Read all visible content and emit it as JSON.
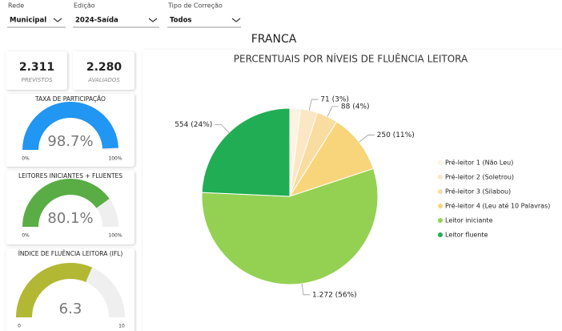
{
  "filters": [
    {
      "label": "Rede",
      "value": "Municipal"
    },
    {
      "label": "Edição",
      "value": "2024-Saída"
    },
    {
      "label": "Tipo de Correção",
      "value": "Todos"
    }
  ],
  "title": "FRANCA",
  "kpis": [
    {
      "value": "2.311",
      "label": "PREVISTOS"
    },
    {
      "value": "2.280",
      "label": "AVALIADOS"
    }
  ],
  "gauges": [
    {
      "title": "TAXA DE PARTICIPAÇÃO",
      "value": 98.7,
      "value_label": "98.7%",
      "min": {
        "value": 0,
        "label": "0%"
      },
      "max": {
        "value": 100,
        "label": "100%"
      },
      "color": "#2196f3"
    },
    {
      "title": "LEITORES INICIANTES + FLUENTES",
      "value": 80.1,
      "value_label": "80.1%",
      "min": {
        "value": 0,
        "label": "0%"
      },
      "max": {
        "value": 100,
        "label": "100%"
      },
      "color": "#5aad45"
    },
    {
      "title": "ÍNDICE DE FLUÊNCIA LEITORA (IFL)",
      "value": 6.3,
      "min": 0,
      "max": 10,
      "color": "#b3b834"
    }
  ],
  "chart_data": {
    "type": "pie",
    "title": "PERCENTUAIS POR NÍVEIS DE FLUÊNCIA LEITORA",
    "categories": [
      "Pré-leitor 1 (Não Leu)",
      "Pré-leitor 2 (Soletrou)",
      "Pré-leitor 3 (Silabou)",
      "Pré-leitor 4 (Leu até 10 Palavras)",
      "Leitor iniciante",
      "Leitor fluente"
    ],
    "values": [
      45,
      71,
      88,
      250,
      1272,
      554
    ],
    "value_labels": [
      null,
      "71 (3%)",
      "88 (4%)",
      "250 (11%)",
      "1.272 (56%)",
      "554 (24%)"
    ],
    "colors": [
      "#fdf3e1",
      "#fbe7c3",
      "#f9dca0",
      "#f8d57a",
      "#94d152",
      "#20ad54"
    ]
  }
}
